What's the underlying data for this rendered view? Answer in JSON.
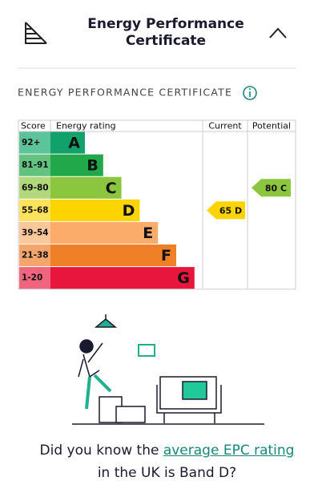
{
  "header": {
    "title_line1": "Energy Performance",
    "title_line2": "Certificate"
  },
  "section_title": "ENERGY PERFORMANCE CERTIFICATE",
  "table": {
    "headers": [
      "Score",
      "Energy rating",
      "Current",
      "Potential"
    ],
    "bands": [
      {
        "score": "92+",
        "letter": "A",
        "color": "#12a16b",
        "light": "#5cc39b"
      },
      {
        "score": "81-91",
        "letter": "B",
        "color": "#20a84a",
        "light": "#63c27f"
      },
      {
        "score": "69-80",
        "letter": "C",
        "color": "#8cc63f",
        "light": "#b1d97b"
      },
      {
        "score": "55-68",
        "letter": "D",
        "color": "#fdd400",
        "light": "#fde35c"
      },
      {
        "score": "39-54",
        "letter": "E",
        "color": "#fbab6a",
        "light": "#fcc89b"
      },
      {
        "score": "21-38",
        "letter": "F",
        "color": "#ef8028",
        "light": "#f4a56b"
      },
      {
        "score": "1-20",
        "letter": "G",
        "color": "#e8163c",
        "light": "#f0657e"
      }
    ],
    "current": "65 D",
    "potential": "80 C"
  },
  "footer": {
    "text_before": "Did you know the",
    "link": "average EPC rating",
    "text_after": "in the UK is Band D?"
  }
}
